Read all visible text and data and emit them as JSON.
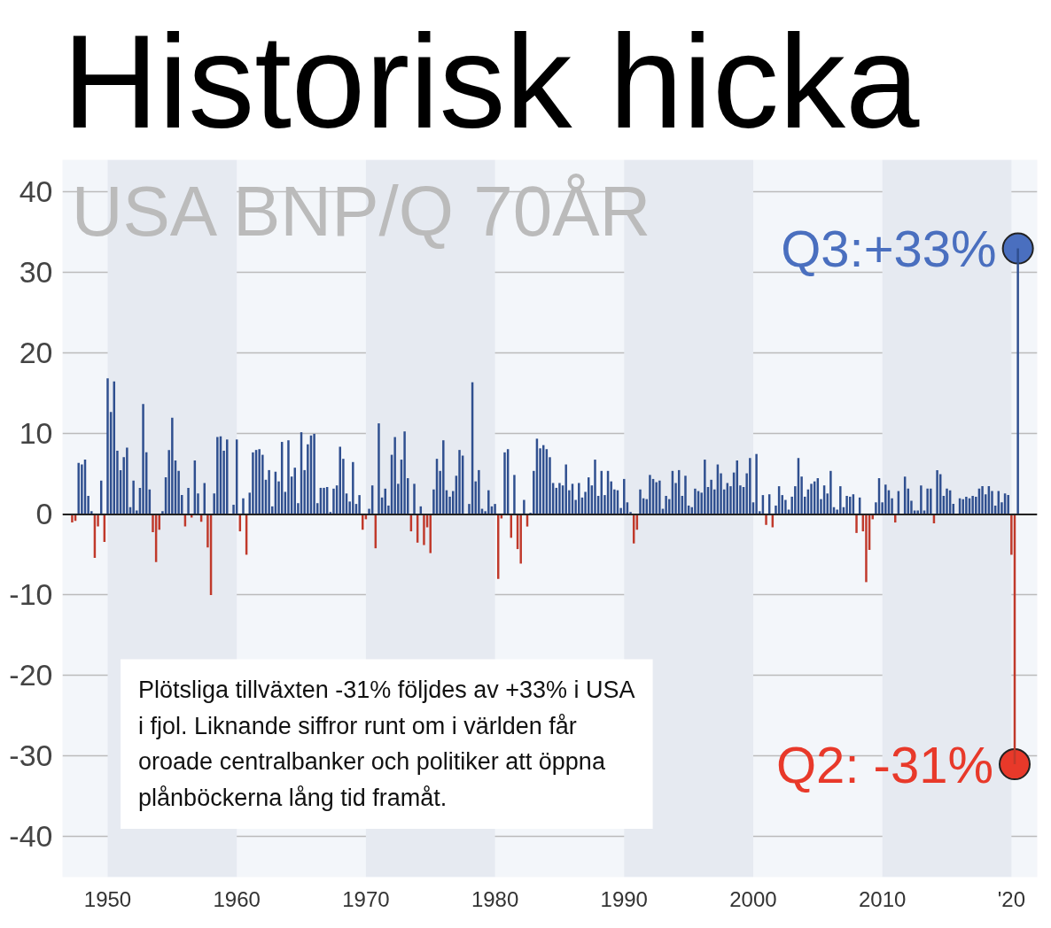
{
  "chart_data": {
    "type": "bar",
    "title": "Historisk hicka",
    "subtitle": "USA BNP/Q 70ÅR",
    "xlim": [
      1946.5,
      2022
    ],
    "ylim": [
      -45,
      44
    ],
    "xticks": [
      1950,
      1960,
      1970,
      1980,
      1990,
      2000,
      2010,
      {
        "value": 2020,
        "label": "'20"
      }
    ],
    "yticks": [
      -40,
      -30,
      -20,
      -10,
      0,
      10,
      20,
      30,
      40
    ],
    "grid": "y",
    "bands": [
      {
        "axis": "x",
        "from": 1950,
        "to": 1960,
        "color": "#e6eaf1"
      },
      {
        "axis": "x",
        "from": 1970,
        "to": 1980,
        "color": "#e6eaf1"
      },
      {
        "axis": "x",
        "from": 1990,
        "to": 2000,
        "color": "#e6eaf1"
      },
      {
        "axis": "x",
        "from": 2010,
        "to": 2020,
        "color": "#e6eaf1"
      }
    ],
    "annotations": [
      {
        "text": "Q3:+33%",
        "x": 2020.5,
        "y": 33
      },
      {
        "text": "Q2: -31%",
        "x": 2020.25,
        "y": -31
      },
      "Plötsliga tillväxten -31% följdes av +33% i USA i fjol. Liknande siffror runt om i världen får oroade centralbanker och politiker att öppna plånböckerna lång tid framåt."
    ],
    "series": [
      {
        "color": "#2f4f8f",
        "x": [
          1947.75,
          1948,
          1948.25,
          1948.5,
          1948.75,
          1949.5,
          1950,
          1950.25,
          1950.5,
          1950.75,
          1951,
          1951.25,
          1951.5,
          1951.75,
          1952,
          1952.25,
          1952.5,
          1952.75,
          1953,
          1953.25,
          1954.25,
          1954.5,
          1954.75,
          1955,
          1955.25,
          1955.5,
          1955.75,
          1956.25,
          1956.75,
          1957,
          1957.5,
          1958.25,
          1958.5,
          1958.75,
          1959,
          1959.25,
          1959.5,
          1959.75,
          1960,
          1960.5,
          1961,
          1961.25,
          1961.5,
          1961.75,
          1962,
          1962.25,
          1962.5,
          1962.75,
          1963,
          1963.25,
          1963.5,
          1963.75,
          1964,
          1964.25,
          1964.5,
          1964.75,
          1965,
          1965.25,
          1965.5,
          1965.75,
          1966,
          1966.25,
          1966.5,
          1966.75,
          1967,
          1967.25,
          1967.5,
          1967.75,
          1968,
          1968.25,
          1968.5,
          1968.75,
          1969,
          1969.25,
          1969.5,
          1970.25,
          1970.5,
          1971,
          1971.25,
          1971.5,
          1971.75,
          1972,
          1972.25,
          1972.5,
          1972.75,
          1973,
          1973.25,
          1973.75,
          1974.25,
          1975.25,
          1975.5,
          1975.75,
          1976,
          1976.25,
          1976.5,
          1976.75,
          1977,
          1977.25,
          1977.5,
          1977.75,
          1978,
          1978.25,
          1978.5,
          1978.75,
          1979,
          1979.25,
          1979.5,
          1979.75,
          1980,
          1980.75,
          1981,
          1981.5,
          1982.25,
          1982.75,
          1983,
          1983.25,
          1983.5,
          1983.75,
          1984,
          1984.25,
          1984.5,
          1984.75,
          1985,
          1985.25,
          1985.5,
          1985.75,
          1986,
          1986.25,
          1986.5,
          1986.75,
          1987,
          1987.25,
          1987.5,
          1987.75,
          1988,
          1988.25,
          1988.5,
          1988.75,
          1989,
          1989.25,
          1989.5,
          1989.75,
          1990,
          1990.25,
          1990.5,
          1991.25,
          1991.5,
          1991.75,
          1992,
          1992.25,
          1992.5,
          1992.75,
          1993,
          1993.25,
          1993.5,
          1993.75,
          1994,
          1994.25,
          1994.5,
          1994.75,
          1995,
          1995.25,
          1995.5,
          1995.75,
          1996,
          1996.25,
          1996.5,
          1996.75,
          1997,
          1997.25,
          1997.5,
          1997.75,
          1998,
          1998.25,
          1998.5,
          1998.75,
          1999,
          1999.25,
          1999.5,
          1999.75,
          2000,
          2000.25,
          2000.5,
          2000.75,
          2001.25,
          2001.75,
          2002,
          2002.25,
          2002.5,
          2002.75,
          2003,
          2003.25,
          2003.5,
          2003.75,
          2004,
          2004.25,
          2004.5,
          2004.75,
          2005,
          2005.25,
          2005.5,
          2005.75,
          2006,
          2006.25,
          2006.5,
          2006.75,
          2007,
          2007.25,
          2007.5,
          2007.75,
          2008.25,
          2009.5,
          2009.75,
          2010,
          2010.25,
          2010.5,
          2010.75,
          2011.25,
          2011.75,
          2012,
          2012.25,
          2012.5,
          2012.75,
          2013,
          2013.25,
          2013.5,
          2013.75,
          2014.25,
          2014.5,
          2014.75,
          2015,
          2015.25,
          2015.5,
          2015.75,
          2016,
          2016.25,
          2016.5,
          2016.75,
          2017,
          2017.25,
          2017.5,
          2017.75,
          2018,
          2018.25,
          2018.5,
          2018.75,
          2019,
          2019.25,
          2019.5,
          2019.75,
          2020.5
        ],
        "values": [
          6.4,
          6.2,
          6.8,
          2.3,
          0.4,
          4.2,
          16.9,
          12.7,
          16.5,
          7.9,
          5.5,
          7.1,
          8.3,
          0.9,
          4.2,
          0.5,
          3.3,
          13.7,
          7.7,
          3.1,
          0.4,
          4.6,
          8.0,
          12.0,
          6.7,
          5.4,
          2.4,
          3.3,
          6.7,
          2.6,
          3.9,
          2.6,
          9.6,
          9.7,
          7.9,
          9.3,
          0.0,
          1.2,
          9.3,
          2.0,
          2.7,
          7.7,
          8.0,
          8.1,
          7.4,
          4.3,
          5.5,
          1.0,
          5.3,
          4.1,
          9.0,
          2.8,
          9.2,
          4.7,
          5.8,
          1.4,
          10.2,
          5.5,
          8.7,
          9.8,
          10.0,
          1.4,
          3.3,
          3.3,
          3.4,
          0.3,
          3.2,
          3.6,
          8.4,
          6.9,
          2.6,
          1.6,
          6.5,
          1.3,
          2.4,
          0.7,
          3.6,
          11.3,
          2.1,
          3.2,
          1.1,
          7.4,
          9.6,
          3.8,
          6.8,
          10.3,
          4.5,
          3.8,
          1.0,
          3.1,
          6.9,
          5.4,
          9.2,
          3.0,
          2.2,
          2.9,
          4.8,
          8.0,
          7.3,
          0.0,
          1.3,
          16.4,
          4.1,
          5.5,
          0.7,
          0.4,
          3.0,
          1.0,
          1.3,
          7.7,
          8.1,
          4.9,
          1.8,
          0.2,
          5.4,
          9.4,
          8.2,
          8.6,
          8.1,
          7.1,
          3.9,
          3.3,
          3.9,
          3.6,
          6.2,
          3.0,
          3.8,
          1.8,
          3.9,
          2.1,
          2.8,
          4.6,
          3.6,
          6.8,
          2.3,
          5.4,
          2.4,
          5.4,
          4.1,
          3.1,
          3.0,
          0.8,
          4.4,
          1.5,
          0.3,
          3.1,
          2.0,
          1.9,
          4.9,
          4.4,
          4.0,
          4.2,
          0.7,
          2.3,
          1.9,
          5.4,
          3.9,
          5.5,
          2.3,
          4.8,
          1.1,
          0.9,
          3.2,
          2.9,
          2.7,
          6.8,
          3.4,
          4.3,
          3.1,
          6.2,
          5.1,
          3.1,
          3.9,
          3.5,
          5.2,
          6.7,
          3.6,
          3.4,
          5.1,
          7.0,
          1.5,
          7.5,
          0.4,
          2.4,
          2.5,
          1.1,
          3.5,
          2.4,
          1.8,
          0.6,
          2.2,
          3.5,
          7.0,
          4.7,
          2.2,
          3.1,
          3.8,
          4.1,
          4.5,
          1.9,
          3.6,
          2.6,
          5.4,
          0.9,
          0.6,
          3.5,
          0.9,
          2.3,
          2.2,
          2.5,
          2.1,
          1.5,
          4.5,
          1.5,
          3.7,
          3.0,
          2.0,
          2.9,
          4.7,
          3.2,
          1.7,
          0.5,
          0.5,
          3.6,
          0.5,
          3.2,
          3.2,
          5.5,
          5.0,
          2.3,
          3.2,
          3.0,
          1.3,
          0.1,
          2.0,
          1.9,
          2.2,
          2.0,
          2.3,
          2.2,
          3.2,
          3.5,
          2.5,
          3.5,
          2.9,
          1.1,
          2.9,
          1.5,
          2.6,
          2.4,
          33
        ]
      },
      {
        "color": "#c0392b",
        "x": [
          1947.25,
          1947.5,
          1949,
          1949.25,
          1949.75,
          1953.5,
          1953.75,
          1954,
          1956,
          1956.5,
          1957.25,
          1957.75,
          1958,
          1960.25,
          1960.75,
          1969.75,
          1970,
          1970.75,
          1973.5,
          1974,
          1974.5,
          1974.75,
          1975,
          1980.25,
          1980.5,
          1981.25,
          1981.75,
          1982,
          1982.5,
          1990.75,
          1991,
          2001,
          2001.5,
          2008,
          2008.5,
          2008.75,
          2009,
          2009.25,
          2011,
          2011.5,
          2014,
          2020,
          2020.25
        ],
        "values": [
          -1.0,
          -0.8,
          -5.4,
          -1.5,
          -3.4,
          -2.2,
          -5.9,
          -1.9,
          -1.5,
          -0.4,
          -0.9,
          -4.1,
          -10.0,
          -2.1,
          -5.0,
          -1.9,
          -0.6,
          -4.2,
          -2.1,
          -3.5,
          -3.8,
          -1.6,
          -4.8,
          -8.0,
          -0.5,
          -2.9,
          -4.3,
          -6.1,
          -1.5,
          -3.6,
          -1.9,
          -1.3,
          -1.6,
          -2.3,
          -2.1,
          -8.4,
          -4.4,
          -0.6,
          -1.0,
          null,
          -1.1,
          -5.0,
          -31
        ]
      },
      {
        "type": "scatter",
        "marker": "circle",
        "x": [
          2020.5,
          2020.25
        ],
        "values": [
          33,
          -31
        ],
        "colors": [
          "#4a6fbf",
          "#e8392a"
        ]
      }
    ]
  }
}
